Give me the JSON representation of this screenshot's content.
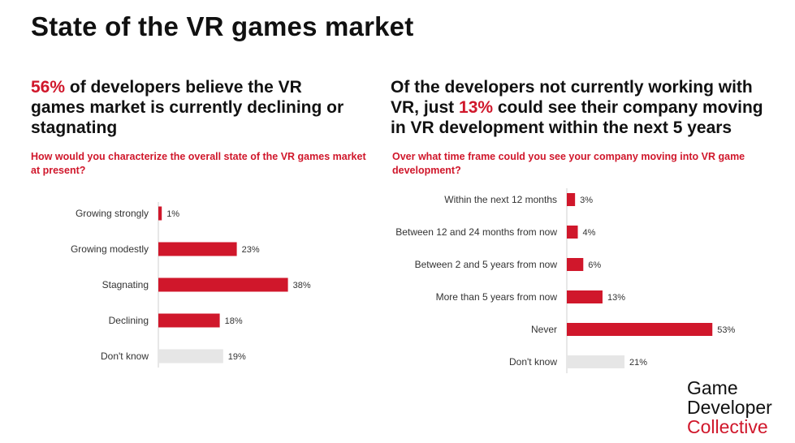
{
  "title": "State of the VR games market",
  "left": {
    "headline_accent": "56%",
    "headline_rest": " of developers believe the VR games market is currently declining or stagnating",
    "question": "How would you characterize the overall state of the VR games market at present?"
  },
  "right": {
    "headline_pre": "Of the developers not currently working with VR, just ",
    "headline_accent": "13%",
    "headline_post": " could see their company moving in VR development within the next 5 years",
    "question": "Over what time frame could you see your company moving into VR game development?"
  },
  "chart_data": [
    {
      "type": "bar",
      "orientation": "horizontal",
      "title": "How would you characterize the overall state of the VR games market at present?",
      "categories": [
        "Growing strongly",
        "Growing modestly",
        "Stagnating",
        "Declining",
        "Don't know"
      ],
      "values": [
        1,
        23,
        38,
        18,
        19
      ],
      "value_labels": [
        "1%",
        "23%",
        "38%",
        "18%",
        "19%"
      ],
      "colors": [
        "#d0172b",
        "#d0172b",
        "#d0172b",
        "#d0172b",
        "#e6e6e6"
      ],
      "unit": "%",
      "xlim": [
        0,
        40
      ]
    },
    {
      "type": "bar",
      "orientation": "horizontal",
      "title": "Over what time frame could you see your company moving into VR game development?",
      "categories": [
        "Within the next 12 months",
        "Between 12 and 24 months from now",
        "Between 2 and 5 years from now",
        "More than 5 years from now",
        "Never",
        "Don't know"
      ],
      "values": [
        3,
        4,
        6,
        13,
        53,
        21
      ],
      "value_labels": [
        "3%",
        "4%",
        "6%",
        "13%",
        "53%",
        "21%"
      ],
      "colors": [
        "#d0172b",
        "#d0172b",
        "#d0172b",
        "#d0172b",
        "#d0172b",
        "#e6e6e6"
      ],
      "unit": "%",
      "xlim": [
        0,
        55
      ]
    }
  ],
  "logo": {
    "line1": "Game",
    "line2": "Developer",
    "line3": "Collective"
  }
}
